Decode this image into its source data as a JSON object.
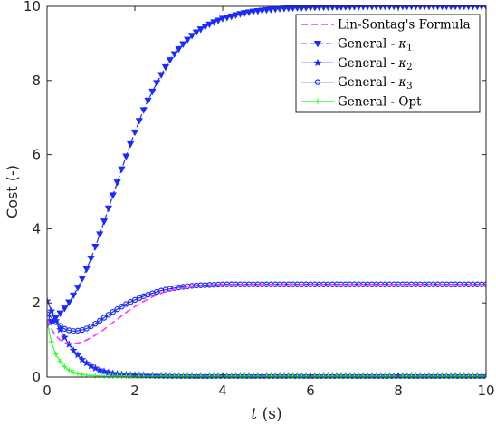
{
  "chart_data": {
    "type": "line",
    "xlabel": {
      "var": "t",
      "unit": "(s)"
    },
    "ylabel": "Cost (-)",
    "xlim": [
      0,
      10
    ],
    "ylim": [
      0,
      10
    ],
    "xticks": [
      "0",
      "2",
      "4",
      "6",
      "8",
      "10"
    ],
    "yticks": [
      "0",
      "2",
      "4",
      "6",
      "8",
      "10"
    ],
    "grid": false,
    "legend_position": "top-right",
    "series": [
      {
        "name": "Lin-Sontag's Formula",
        "color": "#ff33ff",
        "line": "dashed",
        "marker": "none",
        "x": [
          0,
          0.1,
          0.2,
          0.3,
          0.4,
          0.5,
          0.6,
          0.7,
          0.8,
          0.9,
          1.0,
          1.2,
          1.4,
          1.6,
          1.8,
          2.0,
          2.2,
          2.4,
          2.6,
          2.8,
          3.0,
          3.2,
          3.4,
          3.6,
          3.8,
          4.0,
          5.0,
          6.0,
          7.0,
          8.0,
          9.0,
          10.0
        ],
        "y": [
          1.55,
          1.3,
          1.12,
          1.0,
          0.93,
          0.9,
          0.9,
          0.92,
          0.95,
          1.0,
          1.07,
          1.2,
          1.38,
          1.56,
          1.74,
          1.9,
          2.04,
          2.16,
          2.26,
          2.33,
          2.38,
          2.42,
          2.45,
          2.47,
          2.48,
          2.49,
          2.5,
          2.5,
          2.5,
          2.5,
          2.5,
          2.5
        ]
      },
      {
        "name": "General - κ1",
        "label_base": "General - ",
        "label_sym": "κ",
        "label_sub": "1",
        "color": "#1a2bff",
        "line": "dashed",
        "marker": "triangle-down",
        "x": [
          0,
          0.2,
          0.4,
          0.6,
          0.8,
          1.0,
          1.2,
          1.4,
          1.6,
          1.8,
          2.0,
          2.2,
          2.4,
          2.6,
          2.8,
          3.0,
          3.2,
          3.4,
          3.6,
          3.8,
          4.0,
          4.5,
          5.0,
          5.5,
          6.0,
          7.0,
          8.0,
          9.0,
          10.0
        ],
        "y": [
          1.4,
          1.6,
          1.85,
          2.2,
          2.65,
          3.2,
          3.85,
          4.55,
          5.25,
          5.95,
          6.6,
          7.2,
          7.7,
          8.15,
          8.55,
          8.85,
          9.1,
          9.3,
          9.45,
          9.57,
          9.67,
          9.82,
          9.9,
          9.95,
          9.97,
          9.99,
          10.0,
          10.0,
          10.0
        ]
      },
      {
        "name": "General - κ2",
        "label_base": "General - ",
        "label_sym": "κ",
        "label_sub": "2",
        "color": "#1a2bff",
        "line": "solid",
        "marker": "star",
        "x": [
          0,
          0.1,
          0.2,
          0.3,
          0.4,
          0.5,
          0.6,
          0.8,
          1.0,
          1.2,
          1.4,
          1.6,
          1.8,
          2.0,
          2.5,
          3.0,
          4.0,
          5.0,
          6.0,
          7.0,
          8.0,
          9.0,
          10.0
        ],
        "y": [
          2.05,
          1.78,
          1.52,
          1.28,
          1.07,
          0.88,
          0.72,
          0.47,
          0.3,
          0.19,
          0.12,
          0.08,
          0.06,
          0.05,
          0.04,
          0.03,
          0.03,
          0.03,
          0.03,
          0.03,
          0.03,
          0.03,
          0.03
        ]
      },
      {
        "name": "General - κ3",
        "label_base": "General - ",
        "label_sym": "κ",
        "label_sub": "3",
        "color": "#1a2bff",
        "line": "solid",
        "marker": "circle",
        "x": [
          0,
          0.1,
          0.2,
          0.3,
          0.4,
          0.5,
          0.6,
          0.7,
          0.8,
          0.9,
          1.0,
          1.2,
          1.4,
          1.6,
          1.8,
          2.0,
          2.2,
          2.4,
          2.6,
          2.8,
          3.0,
          3.2,
          3.4,
          3.6,
          3.8,
          4.0,
          5.0,
          6.0,
          7.0,
          8.0,
          9.0,
          10.0
        ],
        "y": [
          1.7,
          1.6,
          1.48,
          1.38,
          1.3,
          1.26,
          1.24,
          1.25,
          1.27,
          1.31,
          1.37,
          1.52,
          1.68,
          1.83,
          1.97,
          2.08,
          2.18,
          2.26,
          2.33,
          2.38,
          2.42,
          2.45,
          2.47,
          2.48,
          2.49,
          2.5,
          2.5,
          2.5,
          2.5,
          2.5,
          2.5,
          2.5
        ]
      },
      {
        "name": "General - Opt",
        "color": "#33ff33",
        "line": "solid",
        "marker": "plus",
        "x": [
          0,
          0.1,
          0.2,
          0.3,
          0.4,
          0.5,
          0.6,
          0.7,
          0.8,
          0.9,
          1.0,
          1.2,
          1.4,
          1.6,
          1.8,
          2.0,
          2.5,
          3.0,
          4.0,
          5.0,
          6.0,
          7.0,
          8.0,
          9.0,
          10.0
        ],
        "y": [
          1.45,
          0.95,
          0.62,
          0.42,
          0.28,
          0.19,
          0.13,
          0.09,
          0.07,
          0.05,
          0.04,
          0.03,
          0.02,
          0.02,
          0.02,
          0.02,
          0.02,
          0.02,
          0.02,
          0.02,
          0.02,
          0.02,
          0.02,
          0.02,
          0.02
        ]
      }
    ]
  }
}
